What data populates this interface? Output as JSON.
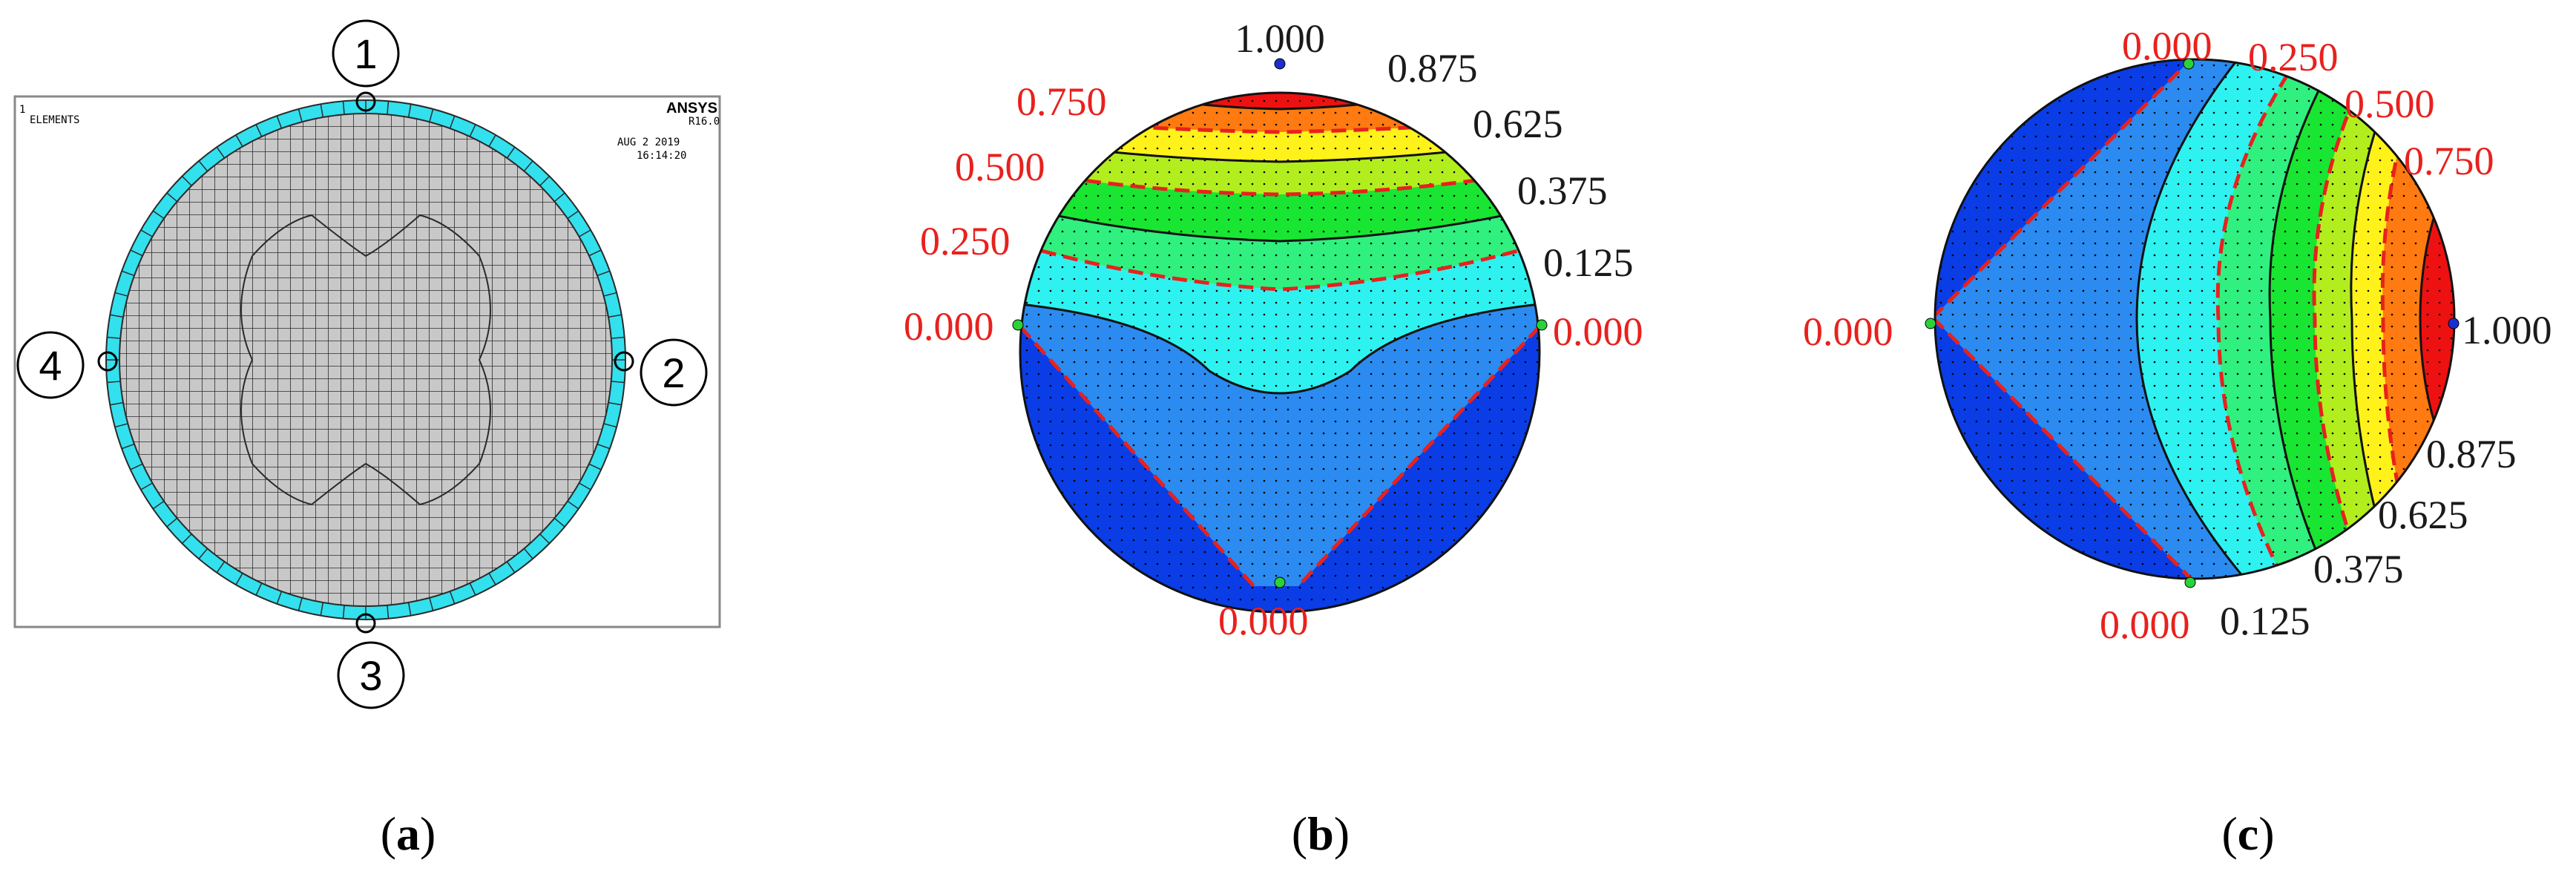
{
  "panel_a": {
    "ansys_brand": "ANSYS",
    "ansys_version": "R16.0",
    "view_label": "ELEMENTS",
    "view_number": "1",
    "date": "AUG  2 2019",
    "time": "16:14:20",
    "nodes": [
      "1",
      "2",
      "3",
      "4"
    ],
    "caption_open": "(",
    "caption_letter": "a",
    "caption_close": ")"
  },
  "panel_b": {
    "red_labels": [
      "0.750",
      "0.500",
      "0.250",
      "0.000",
      "0.000",
      "0.000"
    ],
    "black_labels": [
      "1.000",
      "0.875",
      "0.625",
      "0.375",
      "0.125"
    ],
    "caption_open": "(",
    "caption_letter": "b",
    "caption_close": ")"
  },
  "panel_c": {
    "red_labels": [
      "0.000",
      "0.250",
      "0.500",
      "0.750",
      "0.000",
      "0.000"
    ],
    "black_labels": [
      "1.000",
      "0.875",
      "0.625",
      "0.375",
      "0.125"
    ],
    "caption_open": "(",
    "caption_letter": "c",
    "caption_close": ")"
  },
  "colors": {
    "mesh_fill": "#c8c8c8",
    "mesh_line": "#2a2a2a",
    "ring": "#33e0ee",
    "contour_red": "#ee1111",
    "contour_orange": "#ff7a10",
    "contour_yellow": "#fff21a",
    "contour_yellowgreen": "#b2ee1e",
    "contour_green": "#19e632",
    "contour_lightgreen": "#30f080",
    "contour_cyan": "#2ef2f0",
    "contour_lightblue": "#2b8bf0",
    "contour_blue": "#0a3de6",
    "dashed_red": "#e8211d"
  }
}
